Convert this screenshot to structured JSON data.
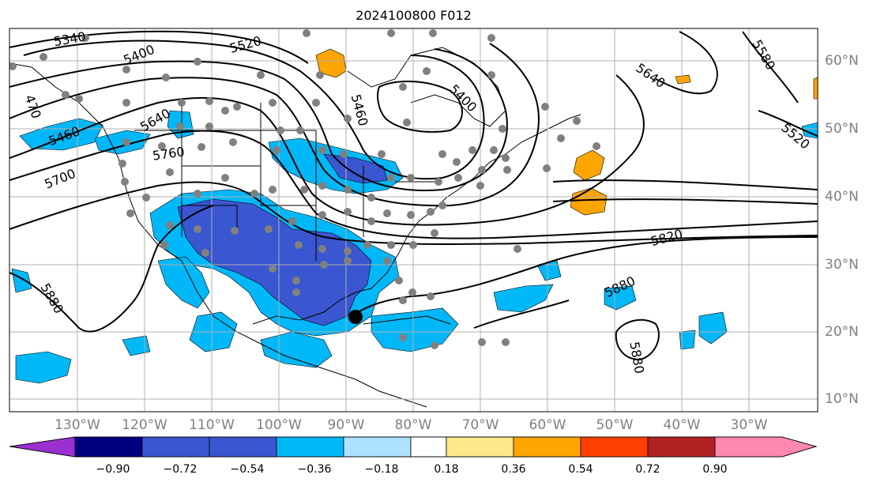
{
  "title": "2024100800 F012",
  "lon_labels": [
    "130°W",
    "120°W",
    "110°W",
    "100°W",
    "90°W",
    "80°W",
    "70°W",
    "60°W",
    "50°W",
    "40°W",
    "30°W"
  ],
  "lat_labels": [
    "60°N",
    "50°N",
    "40°N",
    "30°N",
    "20°N",
    "10°N"
  ],
  "colorbar": {
    "ticks": [
      "−0.90",
      "−0.72",
      "−0.54",
      "−0.36",
      "−0.18",
      "0.18",
      "0.36",
      "0.54",
      "0.72",
      "0.90"
    ],
    "colors": [
      "#9b30d0",
      "#000080",
      "#3a56d0",
      "#00b8f8",
      "#aee2ff",
      "#ffffff",
      "#ffe88a",
      "#ffa500",
      "#ff4000",
      "#b22222",
      "#ff88b0"
    ]
  },
  "contour_labels": [
    "5340",
    "5400",
    "5520",
    "470",
    "5460",
    "5640",
    "5760",
    "5700",
    "5460",
    "5400",
    "5640",
    "5580",
    "5520",
    "5820",
    "5880",
    "5880",
    "5880"
  ],
  "colors": {
    "land_line": "#000000",
    "grid": "#b0b0b0",
    "station_dot": "#808080",
    "marker": "#000000"
  }
}
